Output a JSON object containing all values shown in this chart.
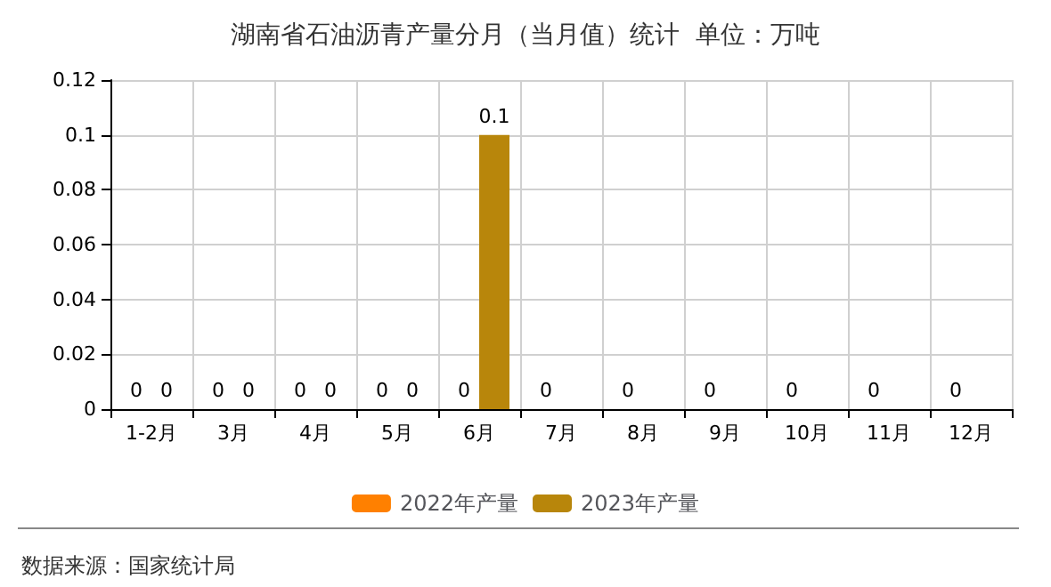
{
  "chart_data": {
    "type": "bar",
    "title": "湖南省石油沥青产量分月（当月值）统计  单位：万吨",
    "categories": [
      "1-2月",
      "3月",
      "4月",
      "5月",
      "6月",
      "7月",
      "8月",
      "9月",
      "10月",
      "11月",
      "12月"
    ],
    "series": [
      {
        "name": "2022年产量",
        "color": "#ff8000",
        "values": [
          0,
          0,
          0,
          0,
          0,
          0,
          0,
          0,
          0,
          0,
          0
        ]
      },
      {
        "name": "2023年产量",
        "color": "#b8860b",
        "values": [
          0,
          0,
          0,
          0,
          0.1,
          null,
          null,
          null,
          null,
          null,
          null
        ]
      }
    ],
    "ylim": [
      0,
      0.12
    ],
    "yticks": [
      0,
      0.02,
      0.04,
      0.06,
      0.08,
      0.1,
      0.12
    ],
    "grid": true,
    "legend": "bottom",
    "data_labels": true,
    "annotations": [
      "数据来源：国家统计局"
    ]
  }
}
